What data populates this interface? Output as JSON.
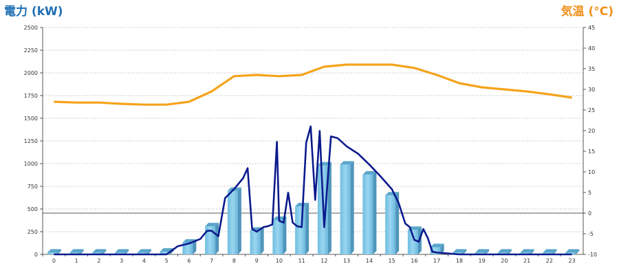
{
  "chart_data": {
    "type": "bar+line",
    "left_axis_title": "電力 (kW)",
    "right_axis_title": "気温 (°C)",
    "y_left": {
      "min": 0,
      "max": 2500,
      "ticks": [
        0,
        250,
        500,
        750,
        1000,
        1250,
        1500,
        1750,
        2000,
        2250,
        2500
      ]
    },
    "y_right": {
      "min": -10,
      "max": 45,
      "ticks": [
        -10,
        -5,
        0,
        5,
        10,
        15,
        20,
        25,
        30,
        35,
        40,
        45
      ]
    },
    "categories": [
      "0",
      "1",
      "2",
      "3",
      "4",
      "5",
      "6",
      "7",
      "8",
      "9",
      "10",
      "11",
      "12",
      "13",
      "14",
      "15",
      "16",
      "17",
      "18",
      "19",
      "20",
      "21",
      "22",
      "23"
    ],
    "bars": {
      "values": [
        20,
        20,
        20,
        20,
        20,
        30,
        130,
        310,
        700,
        260,
        380,
        530,
        980,
        990,
        880,
        650,
        270,
        80,
        20,
        20,
        20,
        20,
        20,
        20
      ],
      "color": "#7ec8e8"
    },
    "power_line": {
      "color": "#0b1a8c",
      "x": [
        0,
        5,
        5.5,
        6,
        6.5,
        6.8,
        7,
        7.3,
        7.6,
        8,
        8.4,
        8.6,
        8.8,
        9,
        9.3,
        9.5,
        9.7,
        9.9,
        10,
        10.2,
        10.4,
        10.6,
        10.8,
        11,
        11.2,
        11.4,
        11.6,
        11.8,
        12,
        12.3,
        12.6,
        13,
        13.5,
        14,
        14.5,
        15,
        15.3,
        15.6,
        15.8,
        16,
        16.2,
        16.4,
        16.6,
        16.8,
        17,
        17.5,
        18,
        23
      ],
      "y": [
        0,
        0,
        90,
        120,
        170,
        260,
        260,
        200,
        620,
        720,
        840,
        950,
        280,
        250,
        300,
        310,
        330,
        1240,
        370,
        350,
        680,
        350,
        310,
        300,
        1230,
        1410,
        600,
        1360,
        300,
        1300,
        1280,
        1190,
        1110,
        990,
        860,
        720,
        570,
        340,
        300,
        160,
        140,
        280,
        180,
        30,
        20,
        10,
        0,
        0
      ]
    },
    "temperature_line": {
      "color": "#f5a31a",
      "x": [
        0,
        1,
        2,
        3,
        4,
        5,
        6,
        7,
        8,
        9,
        10,
        11,
        12,
        13,
        14,
        15,
        16,
        17,
        18,
        19,
        20,
        21,
        22,
        23
      ],
      "y": [
        27,
        26.8,
        26.8,
        26.5,
        26.3,
        26.3,
        27,
        29.5,
        33.2,
        33.5,
        33.2,
        33.5,
        35.5,
        36,
        36,
        36,
        35.2,
        33.5,
        31.5,
        30.5,
        30,
        29.5,
        28.8,
        28
      ]
    },
    "zero_line_right_value": 0
  }
}
